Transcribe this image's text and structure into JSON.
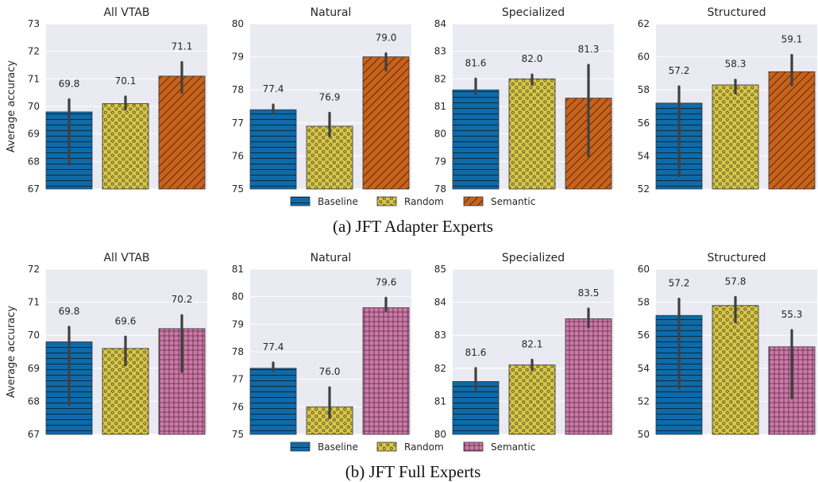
{
  "figure": {
    "y_axis_label": "Average accuracy",
    "colors": {
      "Baseline": "#0f6aa8",
      "Random": "#d8c84a",
      "Semantic_adapter": "#c8621b",
      "Semantic_full": "#cc7aa7",
      "panel_background": "#eaeaf2",
      "error_bar": "#404040"
    },
    "hatches": {
      "Baseline": "horizontal-lines",
      "Random": "small-circles",
      "Semantic_adapter": "diagonal-lines",
      "Semantic_full": "grid"
    }
  },
  "chart_data": [
    {
      "group": "adapter",
      "caption": "(a) JFT Adapter Experts",
      "legend": [
        "Baseline",
        "Random",
        "Semantic"
      ],
      "panels": [
        {
          "type": "bar",
          "title": "All VTAB",
          "ylabel": "Average accuracy",
          "ylim": [
            67,
            73
          ],
          "yticks": [
            "67",
            "68",
            "69",
            "70",
            "71",
            "72",
            "73"
          ],
          "categories": [
            "Baseline",
            "Random",
            "Semantic"
          ],
          "values": [
            69.8,
            70.1,
            71.1
          ],
          "labels": [
            "69.8",
            "70.1",
            "71.1"
          ],
          "err_low": [
            67.9,
            69.9,
            70.5
          ],
          "err_high": [
            70.25,
            70.35,
            71.6
          ]
        },
        {
          "type": "bar",
          "title": "Natural",
          "ylabel": "",
          "ylim": [
            75,
            80
          ],
          "yticks": [
            "75",
            "76",
            "77",
            "78",
            "79",
            "80"
          ],
          "categories": [
            "Baseline",
            "Random",
            "Semantic"
          ],
          "values": [
            77.4,
            76.9,
            79.0
          ],
          "labels": [
            "77.4",
            "76.9",
            "79.0"
          ],
          "err_low": [
            77.3,
            76.6,
            78.6
          ],
          "err_high": [
            77.55,
            77.3,
            79.1
          ]
        },
        {
          "type": "bar",
          "title": "Specialized",
          "ylabel": "",
          "ylim": [
            78,
            84
          ],
          "yticks": [
            "78",
            "79",
            "80",
            "81",
            "82",
            "83",
            "84"
          ],
          "categories": [
            "Baseline",
            "Random",
            "Semantic"
          ],
          "values": [
            81.6,
            82.0,
            81.3
          ],
          "labels": [
            "81.6",
            "82.0",
            "81.3"
          ],
          "err_low": [
            81.45,
            81.8,
            79.2
          ],
          "err_high": [
            82.0,
            82.15,
            82.5
          ]
        },
        {
          "type": "bar",
          "title": "Structured",
          "ylabel": "",
          "ylim": [
            52,
            62
          ],
          "yticks": [
            "52",
            "54",
            "56",
            "58",
            "60",
            "62"
          ],
          "categories": [
            "Baseline",
            "Random",
            "Semantic"
          ],
          "values": [
            57.2,
            58.3,
            59.1
          ],
          "labels": [
            "57.2",
            "58.3",
            "59.1"
          ],
          "err_low": [
            52.8,
            57.8,
            58.3
          ],
          "err_high": [
            58.2,
            58.6,
            60.1
          ]
        }
      ]
    },
    {
      "group": "full",
      "caption": "(b) JFT Full Experts",
      "legend": [
        "Baseline",
        "Random",
        "Semantic"
      ],
      "panels": [
        {
          "type": "bar",
          "title": "All VTAB",
          "ylabel": "Average accuracy",
          "ylim": [
            67,
            72
          ],
          "yticks": [
            "67",
            "68",
            "69",
            "70",
            "71",
            "72"
          ],
          "categories": [
            "Baseline",
            "Random",
            "Semantic"
          ],
          "values": [
            69.8,
            69.6,
            70.2
          ],
          "labels": [
            "69.8",
            "69.6",
            "70.2"
          ],
          "err_low": [
            67.9,
            69.1,
            68.9
          ],
          "err_high": [
            70.25,
            69.95,
            70.6
          ]
        },
        {
          "type": "bar",
          "title": "Natural",
          "ylabel": "",
          "ylim": [
            75,
            81
          ],
          "yticks": [
            "75",
            "76",
            "77",
            "78",
            "79",
            "80",
            "81"
          ],
          "categories": [
            "Baseline",
            "Random",
            "Semantic"
          ],
          "values": [
            77.4,
            76.0,
            79.6
          ],
          "labels": [
            "77.4",
            "76.0",
            "79.6"
          ],
          "err_low": [
            77.3,
            75.6,
            79.5
          ],
          "err_high": [
            77.6,
            76.7,
            79.95
          ]
        },
        {
          "type": "bar",
          "title": "Specialized",
          "ylabel": "",
          "ylim": [
            80,
            85
          ],
          "yticks": [
            "80",
            "81",
            "82",
            "83",
            "84",
            "85"
          ],
          "categories": [
            "Baseline",
            "Random",
            "Semantic"
          ],
          "values": [
            81.6,
            82.1,
            83.5
          ],
          "labels": [
            "81.6",
            "82.1",
            "83.5"
          ],
          "err_low": [
            81.35,
            81.95,
            83.25
          ],
          "err_high": [
            82.0,
            82.25,
            83.8
          ]
        },
        {
          "type": "bar",
          "title": "Structured",
          "ylabel": "",
          "ylim": [
            50,
            60
          ],
          "yticks": [
            "50",
            "52",
            "54",
            "56",
            "58",
            "60"
          ],
          "categories": [
            "Baseline",
            "Random",
            "Semantic"
          ],
          "values": [
            57.2,
            57.8,
            55.3
          ],
          "labels": [
            "57.2",
            "57.8",
            "55.3"
          ],
          "err_low": [
            52.8,
            56.8,
            52.2
          ],
          "err_high": [
            58.2,
            58.3,
            56.3
          ]
        }
      ]
    }
  ]
}
